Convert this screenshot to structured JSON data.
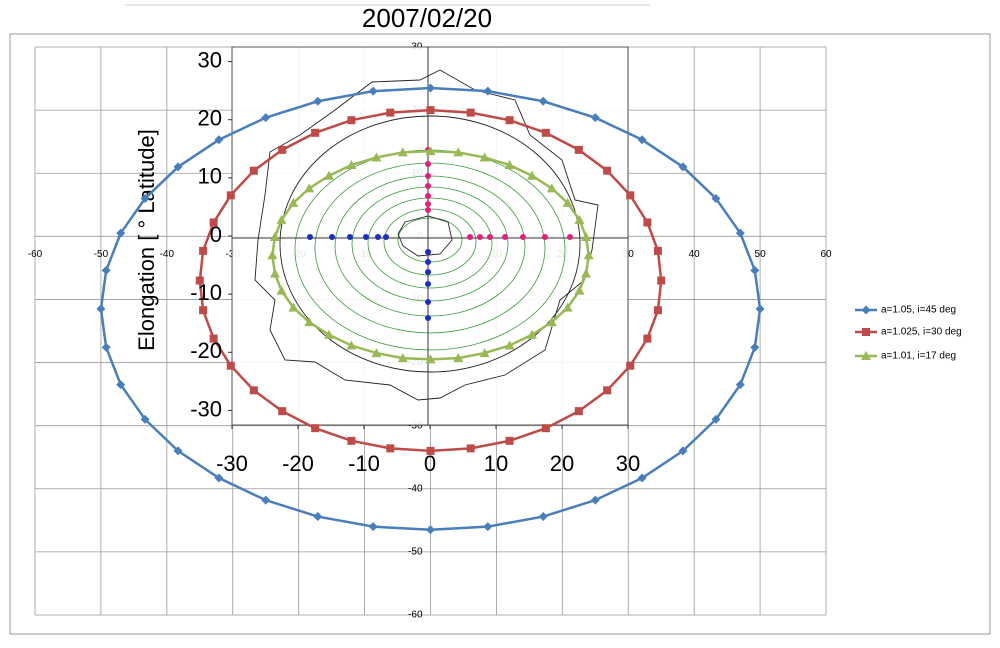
{
  "chart_data": [
    {
      "type": "line",
      "title": "2007/02/20",
      "xlim": [
        -60,
        60
      ],
      "ylim": [
        -60,
        30
      ],
      "xticks": [
        -60,
        -50,
        -40,
        -30,
        -20,
        -10,
        0,
        10,
        20,
        30,
        40,
        50,
        60
      ],
      "yticks": [
        30,
        20,
        10,
        0,
        -10,
        -20,
        -30,
        -40,
        -50,
        -60
      ],
      "grid": true,
      "legend": "right",
      "series": [
        {
          "name": "a=1.05, i=45 deg",
          "color": "#4a7ebb",
          "marker": "diamond",
          "x": [
            50,
            49.2,
            47.0,
            43.3,
            38.3,
            32.1,
            25,
            17.1,
            8.7,
            0,
            -8.7,
            -17.1,
            -25,
            -32.1,
            -38.3,
            -43.3,
            -47.0,
            -49.2,
            -50,
            -49.2,
            -47.0,
            -43.3,
            -38.3,
            -32.1,
            -25,
            -17.1,
            -8.7,
            0,
            8.7,
            17.1,
            25,
            32.1,
            38.3,
            43.3,
            47.0,
            49.2
          ],
          "values": [
            -11.5,
            -5.4,
            0.5,
            6.0,
            11.0,
            15.3,
            18.8,
            21.4,
            23.0,
            23.5,
            23.0,
            21.4,
            18.8,
            15.3,
            11.0,
            6.0,
            0.5,
            -5.4,
            -11.5,
            -17.6,
            -23.5,
            -29.0,
            -34.0,
            -38.3,
            -41.8,
            -44.4,
            -46.0,
            -46.5,
            -46.0,
            -44.4,
            -41.8,
            -38.3,
            -34.0,
            -29.0,
            -23.5,
            -17.6
          ]
        },
        {
          "name": "a=1.025, i=30 deg",
          "color": "#be4b48",
          "marker": "square",
          "x": [
            35,
            34.5,
            32.9,
            30.3,
            26.8,
            22.5,
            17.5,
            12.0,
            6.1,
            0,
            -6.1,
            -12.0,
            -17.5,
            -22.5,
            -26.8,
            -30.3,
            -32.9,
            -34.5,
            -35,
            -34.5,
            -32.9,
            -30.3,
            -26.8,
            -22.5,
            -17.5,
            -12.0,
            -6.1,
            0,
            6.1,
            12.0,
            17.5,
            22.5,
            26.8,
            30.3,
            32.9,
            34.5
          ],
          "values": [
            -7,
            -2.3,
            2.2,
            6.5,
            10.4,
            13.7,
            16.4,
            18.4,
            19.6,
            20,
            19.6,
            18.4,
            16.4,
            13.7,
            10.4,
            6.5,
            2.2,
            -2.3,
            -7,
            -11.7,
            -16.2,
            -20.5,
            -24.4,
            -27.7,
            -30.4,
            -32.4,
            -33.6,
            -34,
            -33.6,
            -32.4,
            -30.4,
            -27.7,
            -24.4,
            -20.5,
            -16.2,
            -11.7
          ]
        },
        {
          "name": "a=1.01, i=17 deg",
          "color": "#98b954",
          "marker": "triangle",
          "x": [
            24,
            23.6,
            22.6,
            20.8,
            18.4,
            15.4,
            12,
            8.2,
            4.2,
            0,
            -4.2,
            -8.2,
            -12,
            -15.4,
            -18.4,
            -20.8,
            -22.6,
            -23.6,
            -24,
            -23.6,
            -22.6,
            -20.8,
            -18.4,
            -15.4,
            -12,
            -8.2,
            -4.2,
            0,
            4.2,
            8.2,
            12,
            15.4,
            18.4,
            20.8,
            22.6,
            23.6
          ],
          "values": [
            -3,
            -0.1,
            2.6,
            5.3,
            7.6,
            9.6,
            11.3,
            12.5,
            13.3,
            13.5,
            13.3,
            12.5,
            11.3,
            9.6,
            7.6,
            5.3,
            2.6,
            -0.1,
            -3,
            -5.9,
            -8.6,
            -11.3,
            -13.6,
            -15.6,
            -17.3,
            -18.5,
            -19.3,
            -19.5,
            -19.3,
            -18.5,
            -17.3,
            -15.6,
            -13.6,
            -11.3,
            -8.6,
            -5.9
          ]
        }
      ]
    },
    {
      "type": "contour",
      "ylabel": "Elongation [ ° Latitude]",
      "xlim": [
        -30,
        30
      ],
      "ylim": [
        -32.5,
        32.5
      ],
      "xticks": [
        -30,
        -20,
        -10,
        0,
        10,
        20,
        30
      ],
      "yticks": [
        30,
        20,
        10,
        0,
        -10,
        -20,
        -30
      ]
    }
  ]
}
